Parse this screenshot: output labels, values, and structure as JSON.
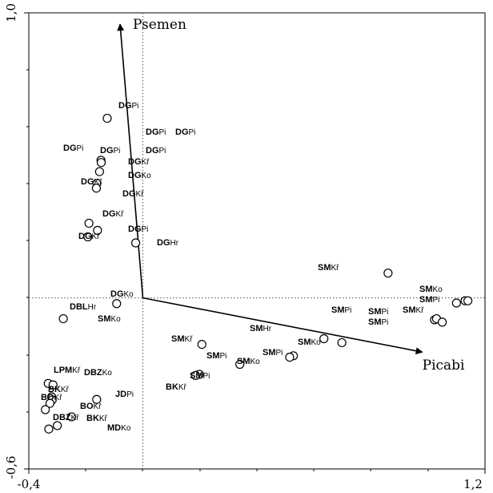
{
  "chart_data": {
    "type": "scatter",
    "title": "",
    "xlim": [
      -0.4,
      1.2
    ],
    "ylim": [
      -0.6,
      1.0
    ],
    "x_ticks": [
      "-0,4",
      "1,2"
    ],
    "y_ticks": [
      "1,0",
      "-0,6"
    ],
    "grid": false,
    "reference_lines": [
      {
        "axis": "x",
        "value": 0
      },
      {
        "axis": "y",
        "value": 0
      }
    ],
    "vectors": [
      {
        "name": "Psemen",
        "x": -0.08,
        "y": 0.96
      },
      {
        "name": "Picabi",
        "x": 0.98,
        "y": -0.19
      }
    ],
    "points": [
      {
        "main": "DG",
        "sub": "Pi",
        "x": -0.125,
        "y": 0.63
      },
      {
        "main": "DG",
        "sub": "Pi",
        "x": null,
        "y": null
      },
      {
        "main": "DG",
        "sub": "Pi",
        "x": null,
        "y": null
      },
      {
        "main": "DG",
        "sub": "Pi",
        "x": null,
        "y": null
      },
      {
        "main": "DG",
        "sub": "Pi",
        "x": null,
        "y": null
      },
      {
        "main": "DG",
        "sub": "Pi",
        "x": -0.147,
        "y": 0.483
      },
      {
        "main": "DG",
        "sub": "Kř",
        "x": -0.146,
        "y": 0.475
      },
      {
        "main": "DG",
        "sub": "Ko",
        "x": -0.152,
        "y": 0.443
      },
      {
        "main": "DG",
        "sub": "Kř",
        "x": -0.161,
        "y": 0.402
      },
      {
        "main": "DG",
        "sub": "Kř",
        "x": -0.163,
        "y": 0.385
      },
      {
        "main": "DG",
        "sub": "Kř",
        "x": -0.189,
        "y": 0.262
      },
      {
        "main": "DG",
        "sub": "Pi",
        "x": -0.159,
        "y": 0.237
      },
      {
        "main": "DG",
        "sub": "Kř",
        "x": -0.193,
        "y": 0.214
      },
      {
        "main": "DG",
        "sub": "Hr",
        "x": -0.025,
        "y": 0.193
      },
      {
        "main": "DG",
        "sub": "Ko",
        "x": -0.092,
        "y": -0.02
      },
      {
        "main": "DBL",
        "sub": "Hr",
        "x": -0.279,
        "y": -0.073
      },
      {
        "main": "SM",
        "sub": "Ko",
        "x": 0.86,
        "y": 0.087
      },
      {
        "main": "SM",
        "sub": "Kř",
        "x": 1.13,
        "y": -0.01
      },
      {
        "main": "SM",
        "sub": "Ko",
        "x": 1.14,
        "y": -0.01
      },
      {
        "main": "SM",
        "sub": "Pi",
        "x": 1.1,
        "y": -0.018
      },
      {
        "main": "SM",
        "sub": "Kř",
        "x": 1.023,
        "y": -0.077
      },
      {
        "main": "SM",
        "sub": "Pi",
        "x": 1.03,
        "y": -0.073
      },
      {
        "main": "SM",
        "sub": "Pi",
        "x": 1.05,
        "y": -0.085
      },
      {
        "main": "SM",
        "sub": "Pi",
        "x": 0.635,
        "y": -0.143
      },
      {
        "main": "SM",
        "sub": "Hr",
        "x": 0.698,
        "y": -0.157
      },
      {
        "main": "SM",
        "sub": "Ko",
        "x": 0.207,
        "y": -0.163
      },
      {
        "main": "SM",
        "sub": "Kř",
        "x": 0.34,
        "y": -0.233
      },
      {
        "main": "SM",
        "sub": "Pi",
        "x": 0.528,
        "y": -0.203
      },
      {
        "main": "SM",
        "sub": "Pi",
        "x": 0.515,
        "y": -0.208
      },
      {
        "main": "SM",
        "sub": "Ko",
        "x": 0.198,
        "y": -0.268
      },
      {
        "main": "SM",
        "sub": "Pi",
        "x": 0.185,
        "y": -0.272
      },
      {
        "main": "BK",
        "sub": "Kř",
        "x": -0.332,
        "y": -0.3
      },
      {
        "main": "LPM",
        "sub": "Kř",
        "x": -0.315,
        "y": -0.305
      },
      {
        "main": "DBZ",
        "sub": "Ko",
        "x": -0.32,
        "y": -0.347
      },
      {
        "main": "BK",
        "sub": "Kř",
        "x": -0.318,
        "y": -0.358
      },
      {
        "main": "BO",
        "sub": "Kř",
        "x": -0.162,
        "y": -0.356
      },
      {
        "main": "JD",
        "sub": "Pi",
        "x": -0.326,
        "y": -0.37
      },
      {
        "main": "BO",
        "sub": "Kř",
        "x": -0.342,
        "y": -0.392
      },
      {
        "main": "DBZ",
        "sub": "Kř",
        "x": -0.25,
        "y": -0.417
      },
      {
        "main": "BK",
        "sub": "Kř",
        "x": -0.3,
        "y": -0.448
      },
      {
        "main": "MD",
        "sub": "Ko",
        "x": -0.33,
        "y": -0.46
      }
    ]
  }
}
